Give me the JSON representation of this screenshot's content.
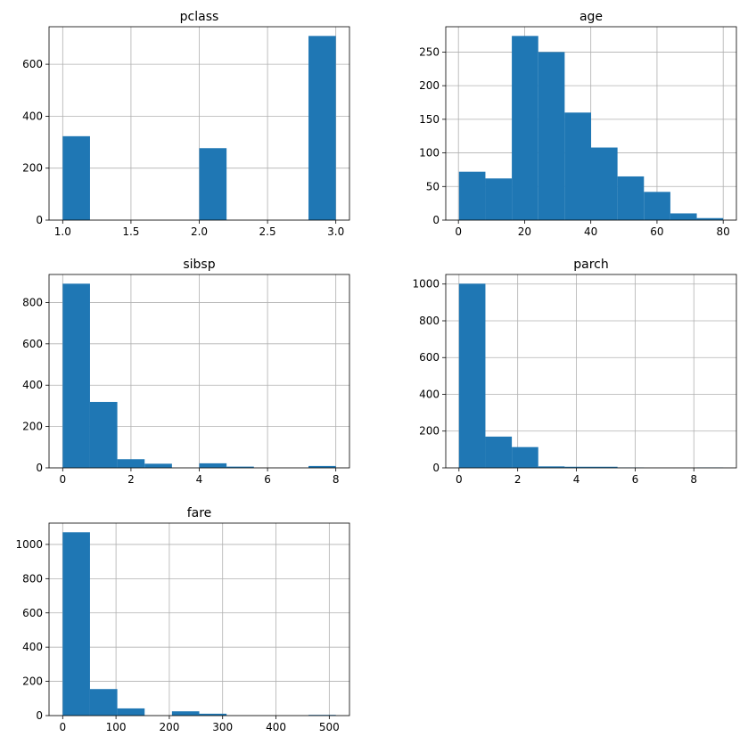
{
  "chart_data": [
    {
      "type": "histogram",
      "title": "pclass",
      "color": "#1f77b4",
      "grid": true,
      "bins": [
        1.0,
        1.2,
        1.4,
        1.6,
        1.8,
        2.0,
        2.2,
        2.4,
        2.6,
        2.8,
        3.0
      ],
      "values": [
        323,
        0,
        0,
        0,
        0,
        277,
        0,
        0,
        0,
        709
      ],
      "xlim": [
        0.9,
        3.1
      ],
      "ylim": [
        0,
        744.45
      ],
      "xticks": [
        {
          "value": 1,
          "label": "1.0"
        },
        {
          "value": 1.5,
          "label": "1.5"
        },
        {
          "value": 2,
          "label": "2.0"
        },
        {
          "value": 2.5,
          "label": "2.5"
        },
        {
          "value": 3,
          "label": "3.0"
        }
      ],
      "yticks": [
        0,
        200,
        400,
        600
      ]
    },
    {
      "type": "histogram",
      "title": "age",
      "color": "#1f77b4",
      "grid": true,
      "bins": [
        0.17,
        8.153,
        16.136,
        24.119,
        32.102,
        40.085,
        48.068,
        56.051,
        64.034,
        72.017,
        80
      ],
      "values": [
        72,
        62,
        274,
        250,
        160,
        108,
        65,
        42,
        10,
        3
      ],
      "xlim": [
        -3.82,
        83.99
      ],
      "ylim": [
        0,
        287.7
      ],
      "xticks": [
        0,
        20,
        40,
        60,
        80
      ],
      "yticks": [
        0,
        50,
        100,
        150,
        200,
        250
      ]
    },
    {
      "type": "histogram",
      "title": "sibsp",
      "color": "#1f77b4",
      "grid": true,
      "bins": [
        0,
        0.8,
        1.6,
        2.4,
        3.2,
        4.0,
        4.8,
        5.6,
        6.4,
        7.2,
        8
      ],
      "values": [
        891,
        319,
        42,
        20,
        0,
        22,
        6,
        0,
        0,
        9
      ],
      "xlim": [
        -0.4,
        8.4
      ],
      "ylim": [
        0,
        935.55
      ],
      "xticks": [
        0,
        2,
        4,
        6,
        8
      ],
      "yticks": [
        0,
        200,
        400,
        600,
        800
      ]
    },
    {
      "type": "histogram",
      "title": "parch",
      "color": "#1f77b4",
      "grid": true,
      "bins": [
        0,
        0.9,
        1.8,
        2.7,
        3.6,
        4.5,
        5.4,
        6.3,
        7.2,
        8.1,
        9
      ],
      "values": [
        1002,
        170,
        113,
        8,
        6,
        6,
        2,
        0,
        0,
        2
      ],
      "xlim": [
        -0.45,
        9.45
      ],
      "ylim": [
        0,
        1052.1
      ],
      "xticks": [
        0,
        2,
        4,
        6,
        8
      ],
      "yticks": [
        0,
        200,
        400,
        600,
        800,
        1000
      ]
    },
    {
      "type": "histogram",
      "title": "fare",
      "color": "#1f77b4",
      "grid": true,
      "bins": [
        0,
        51.233,
        102.466,
        153.699,
        204.932,
        256.165,
        307.398,
        358.631,
        409.863,
        461.096,
        512.329
      ],
      "values": [
        1071,
        155,
        42,
        0,
        25,
        11,
        0,
        0,
        0,
        4
      ],
      "xlim": [
        -25.6,
        537.9
      ],
      "ylim": [
        0,
        1124.55
      ],
      "xticks": [
        0,
        100,
        200,
        300,
        400,
        500
      ],
      "yticks": [
        0,
        200,
        400,
        600,
        800,
        1000
      ]
    }
  ]
}
